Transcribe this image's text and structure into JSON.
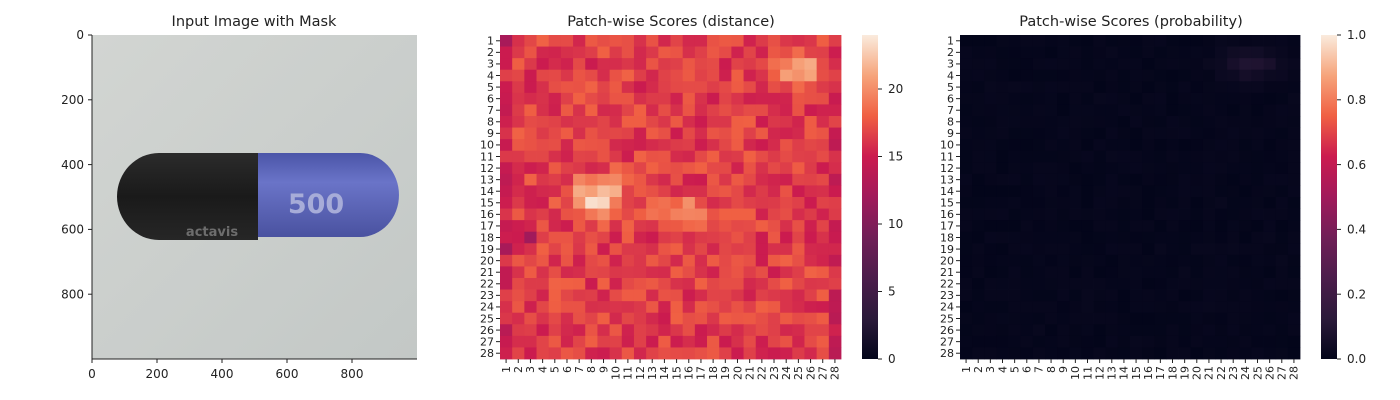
{
  "chart_data": [
    {
      "type": "image",
      "title": "Input Image with Mask",
      "x_ticks": [
        "0",
        "200",
        "400",
        "600",
        "800"
      ],
      "y_ticks": [
        "0",
        "200",
        "400",
        "600",
        "800"
      ],
      "xlim": [
        0,
        1000
      ],
      "ylim": [
        1000,
        0
      ],
      "image_text": [
        "500",
        "actavis"
      ],
      "colors": {
        "background": "#c9cdcb",
        "capsule_dark": "#1f1f1f",
        "capsule_blue": "#5d66bd"
      }
    },
    {
      "type": "heatmap",
      "title": "Patch-wise Scores (distance)",
      "x_labels": [
        "1",
        "2",
        "3",
        "4",
        "5",
        "6",
        "7",
        "8",
        "9",
        "10",
        "11",
        "12",
        "13",
        "14",
        "15",
        "16",
        "17",
        "18",
        "19",
        "20",
        "21",
        "22",
        "23",
        "24",
        "25",
        "26",
        "27",
        "28"
      ],
      "y_labels": [
        "1",
        "2",
        "3",
        "4",
        "5",
        "6",
        "7",
        "8",
        "9",
        "10",
        "11",
        "12",
        "13",
        "14",
        "15",
        "16",
        "17",
        "18",
        "19",
        "20",
        "21",
        "22",
        "23",
        "24",
        "25",
        "26",
        "27",
        "28"
      ],
      "colorbar": {
        "min": 0,
        "max": 24,
        "ticks": [
          "0",
          "5",
          "10",
          "15",
          "20"
        ]
      },
      "colormap": "rocket",
      "value_summary": "mostly 15-20; high 22-24 near rows 13-16 cols 7-10 and rows 3-4 cols 24-26; lower 11-13 at row 18 col 3 and row 19 col 1"
    },
    {
      "type": "heatmap",
      "title": "Patch-wise Scores (probability)",
      "x_labels": [
        "1",
        "2",
        "3",
        "4",
        "5",
        "6",
        "7",
        "8",
        "9",
        "10",
        "11",
        "12",
        "13",
        "14",
        "15",
        "16",
        "17",
        "18",
        "19",
        "20",
        "21",
        "22",
        "23",
        "24",
        "25",
        "26",
        "27",
        "28"
      ],
      "y_labels": [
        "1",
        "2",
        "3",
        "4",
        "5",
        "6",
        "7",
        "8",
        "9",
        "10",
        "11",
        "12",
        "13",
        "14",
        "15",
        "16",
        "17",
        "18",
        "19",
        "20",
        "21",
        "22",
        "23",
        "24",
        "25",
        "26",
        "27",
        "28"
      ],
      "colorbar": {
        "min": 0.0,
        "max": 1.0,
        "ticks": [
          "0.0",
          "0.2",
          "0.4",
          "0.6",
          "0.8",
          "1.0"
        ]
      },
      "colormap": "rocket",
      "value_summary": "near 0 everywhere; max about 0.1 near rows 2-4 cols 22-26"
    }
  ]
}
